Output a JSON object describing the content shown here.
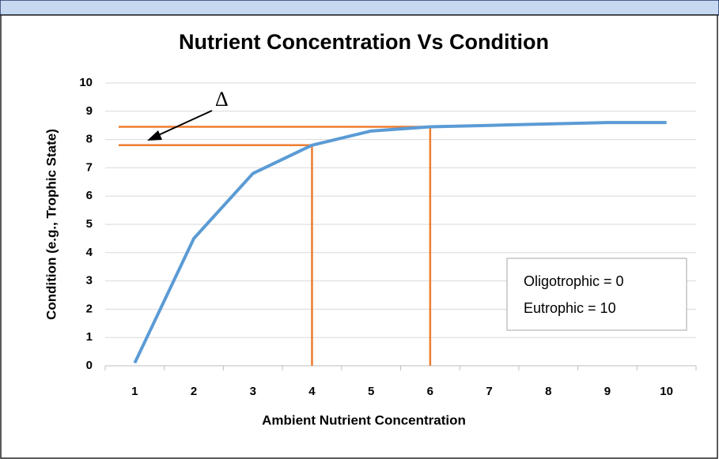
{
  "chart_data": {
    "type": "line",
    "title": "Nutrient Concentration Vs Condition",
    "x_label": "Ambient Nutrient Concentration",
    "y_label": "Condition (e.g., Trophic State)",
    "categories": [
      1,
      2,
      3,
      4,
      5,
      6,
      7,
      8,
      9,
      10
    ],
    "series": [
      {
        "name": "Condition",
        "color": "#5b9bd5",
        "values": [
          0.1,
          4.5,
          6.8,
          7.8,
          8.3,
          8.45,
          8.5,
          8.55,
          8.6,
          8.6
        ]
      }
    ],
    "ylim": [
      0,
      10
    ],
    "yticks": [
      0,
      1,
      2,
      3,
      4,
      5,
      6,
      7,
      8,
      9,
      10
    ],
    "grid": true,
    "reference_lines": [
      {
        "x": 4,
        "y": 7.8
      },
      {
        "x": 6,
        "y": 8.45
      }
    ],
    "reference_color": "#ed7d31",
    "annotation": "Δ",
    "legend_box": [
      "Oligotrophic = 0",
      "Eutrophic = 10"
    ]
  }
}
